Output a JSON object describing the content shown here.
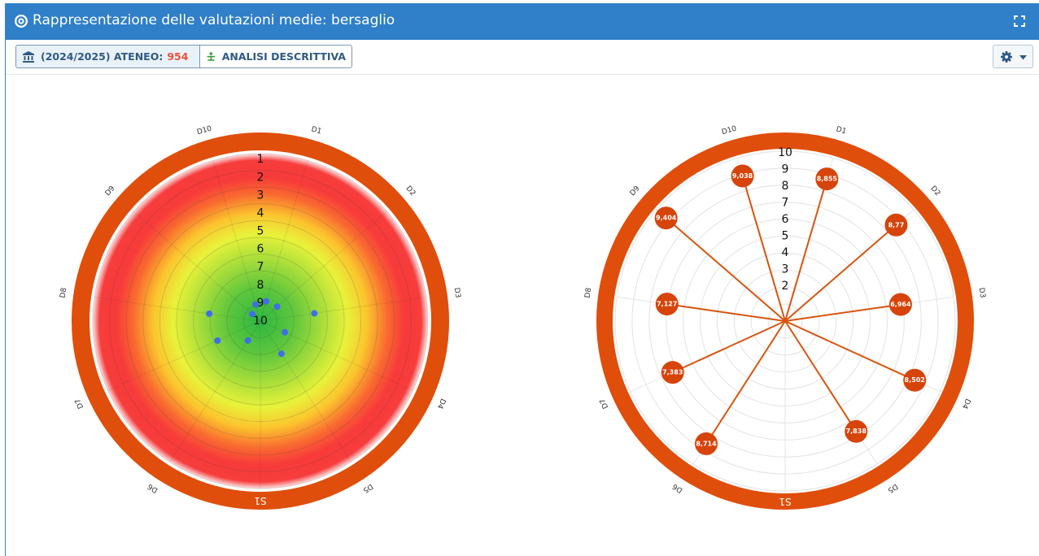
{
  "header": {
    "title": "Rappresentazione delle valutazioni medie: bersaglio",
    "colors": {
      "bar": "#2f7fc9"
    }
  },
  "toolbar": {
    "year_label": "(2024/2025) ATENEO:",
    "year_count": "954",
    "analysis_label": "ANALISI DESCRITTIVA",
    "icons": [
      "university-icon",
      "analysis-icon",
      "gear-icon",
      "caret-down-icon",
      "expand-icon"
    ]
  },
  "chart_data": [
    {
      "type": "radial-scatter",
      "title": "",
      "categories": [
        "D1",
        "D2",
        "D3",
        "D4",
        "D5",
        "S1",
        "D6",
        "D7",
        "D8",
        "D9",
        "D10"
      ],
      "r_ticks": [
        "1",
        "2",
        "3",
        "4",
        "5",
        "6",
        "7",
        "8",
        "9",
        "10"
      ],
      "r_axis": "10 at center, 1 at edge",
      "values": [
        8.855,
        8.77,
        6.964,
        8.502,
        7.838,
        null,
        8.714,
        7.383,
        7.127,
        9.404,
        9.038
      ],
      "colors": {
        "ring": "#e04e0b",
        "points": "#3f6fe6",
        "gradient": [
          "#2db842",
          "#79d33c",
          "#e6f238",
          "#fbb72c",
          "#f73a3a"
        ]
      },
      "grid": true
    },
    {
      "type": "radar-spokes",
      "title": "",
      "categories": [
        "D1",
        "D2",
        "D3",
        "D4",
        "D5",
        "S1",
        "D6",
        "D7",
        "D8",
        "D9",
        "D10"
      ],
      "r_ticks": [
        "2",
        "3",
        "4",
        "5",
        "6",
        "7",
        "8",
        "9",
        "10"
      ],
      "r_axis": "0 at center, 10 at edge",
      "values": [
        8.855,
        8.77,
        6.964,
        8.502,
        7.838,
        null,
        8.714,
        7.383,
        7.127,
        9.404,
        9.038
      ],
      "value_labels": [
        "8,855",
        "8,77",
        "6,964",
        "8,502",
        "7,838",
        "",
        "8,714",
        "7,383",
        "7,127",
        "9,404",
        "9,038"
      ],
      "colors": {
        "ring": "#e04e0b",
        "spokes": "#d8540f",
        "markers": "#d6440a"
      },
      "grid": true
    }
  ]
}
